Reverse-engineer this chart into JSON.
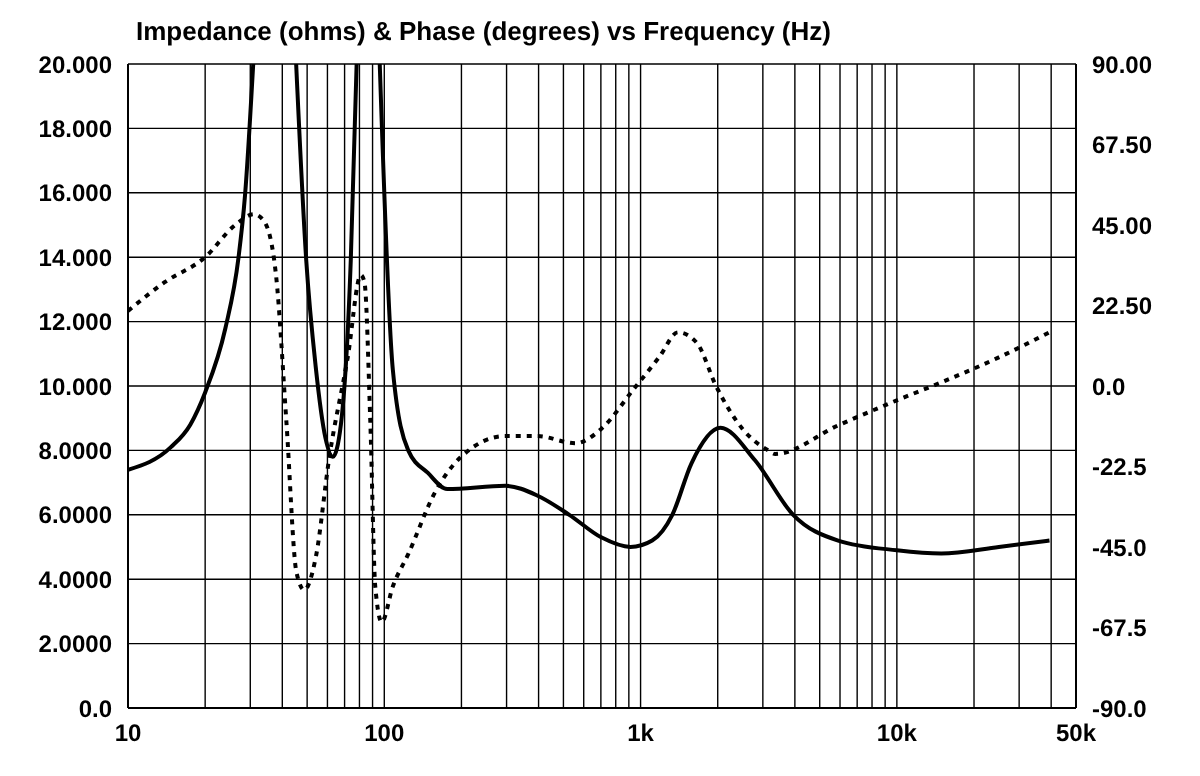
{
  "chart_data": {
    "type": "line",
    "title": "Impedance (ohms) & Phase (degrees) vs Frequency (Hz)",
    "series": [
      {
        "color": "#000000",
        "line_style": "solid",
        "x": [
          10,
          14.7,
          17.5,
          20,
          24,
          27,
          28.6,
          30.8,
          37,
          45.3,
          49.6,
          54,
          58.9,
          63,
          67.7,
          74,
          78,
          88,
          96,
          108,
          124,
          148,
          176,
          297,
          395,
          527,
          702,
          913,
          1110,
          1330,
          1580,
          2050,
          2790,
          3940,
          5900,
          10000,
          14900,
          25000,
          39400
        ],
        "values": [
          7.4,
          8.1,
          8.8,
          9.8,
          11.8,
          14.0,
          15.9,
          20,
          null,
          20,
          13.9,
          10.6,
          8.4,
          7.8,
          8.8,
          13.9,
          20,
          null,
          20,
          10.5,
          8.0,
          7.3,
          6.8,
          6.9,
          6.6,
          6.0,
          5.3,
          5.0,
          5.2,
          6.0,
          7.6,
          8.7,
          7.7,
          6.0,
          5.2,
          4.9,
          4.8,
          5.0,
          5.2
        ]
      },
      {
        "color": "#000000",
        "line_style": "dotted",
        "axis": "y2",
        "x": [
          10,
          13.9,
          20,
          26.2,
          31,
          34,
          37.8,
          41.5,
          45.4,
          48.7,
          54,
          61,
          72,
          81,
          83.7,
          88.2,
          92.2,
          97.7,
          108,
          124,
          157,
          198,
          297,
          395,
          557,
          702,
          937,
          1180,
          1400,
          1660,
          1970,
          2500,
          3150,
          3350,
          5900,
          10000,
          14900,
          25000,
          39400
        ],
        "values": [
          21,
          29,
          36,
          45,
          48,
          46,
          31,
          -10,
          -52,
          -57,
          -48,
          -20,
          8,
          31,
          29,
          -10,
          -56,
          -66,
          -56,
          -47,
          -30,
          -20,
          -14,
          -14,
          -16,
          -12,
          -1,
          8,
          15,
          12,
          0,
          -12,
          -18,
          -19,
          -11,
          -4,
          1,
          8,
          15
        ]
      }
    ],
    "xlim": [
      10,
      50000
    ],
    "log": "x",
    "xticks": [
      10,
      {
        "value": 20,
        "label": null
      },
      {
        "value": 30,
        "label": null
      },
      {
        "value": 40,
        "label": null
      },
      {
        "value": 50,
        "label": null
      },
      {
        "value": 60,
        "label": null
      },
      {
        "value": 70,
        "label": null
      },
      {
        "value": 80,
        "label": null
      },
      {
        "value": 90,
        "label": null
      },
      100,
      {
        "value": 200,
        "label": null
      },
      {
        "value": 300,
        "label": null
      },
      {
        "value": 400,
        "label": null
      },
      {
        "value": 500,
        "label": null
      },
      {
        "value": 600,
        "label": null
      },
      {
        "value": 700,
        "label": null
      },
      {
        "value": 800,
        "label": null
      },
      {
        "value": 900,
        "label": null
      },
      {
        "value": 1000,
        "label": "1k"
      },
      {
        "value": 2000,
        "label": null
      },
      {
        "value": 3000,
        "label": null
      },
      {
        "value": 4000,
        "label": null
      },
      {
        "value": 5000,
        "label": null
      },
      {
        "value": 6000,
        "label": null
      },
      {
        "value": 7000,
        "label": null
      },
      {
        "value": 8000,
        "label": null
      },
      {
        "value": 9000,
        "label": null
      },
      {
        "value": 10000,
        "label": "10k"
      },
      {
        "value": 20000,
        "label": null
      },
      {
        "value": 30000,
        "label": null
      },
      {
        "value": 40000,
        "label": null
      },
      {
        "value": 50000,
        "label": "50k"
      }
    ],
    "ylim": [
      0,
      20
    ],
    "yticks": [
      {
        "value": 0,
        "label": "0.0"
      },
      {
        "value": 2,
        "label": "2.0000"
      },
      {
        "value": 4,
        "label": "4.0000"
      },
      {
        "value": 6,
        "label": "6.0000"
      },
      {
        "value": 8,
        "label": "8.0000"
      },
      {
        "value": 10,
        "label": "10.000"
      },
      {
        "value": 12,
        "label": "12.000"
      },
      {
        "value": 14,
        "label": "14.000"
      },
      {
        "value": 16,
        "label": "16.000"
      },
      {
        "value": 18,
        "label": "18.000"
      },
      {
        "value": 20,
        "label": "20.000"
      }
    ],
    "y2lim": [
      -90,
      90
    ],
    "y2ticks": [
      {
        "value": -90,
        "label": "-90.0"
      },
      {
        "value": -67.5,
        "label": "-67.5"
      },
      {
        "value": -45,
        "label": "-45.0"
      },
      {
        "value": -22.5,
        "label": "-22.5"
      },
      {
        "value": 0,
        "label": "0.0"
      },
      {
        "value": 22.5,
        "label": "22.50"
      },
      {
        "value": 45,
        "label": "45.00"
      },
      {
        "value": 67.5,
        "label": "67.50"
      },
      {
        "value": 90,
        "label": "90.00"
      }
    ],
    "grid": true,
    "marker": "none"
  }
}
